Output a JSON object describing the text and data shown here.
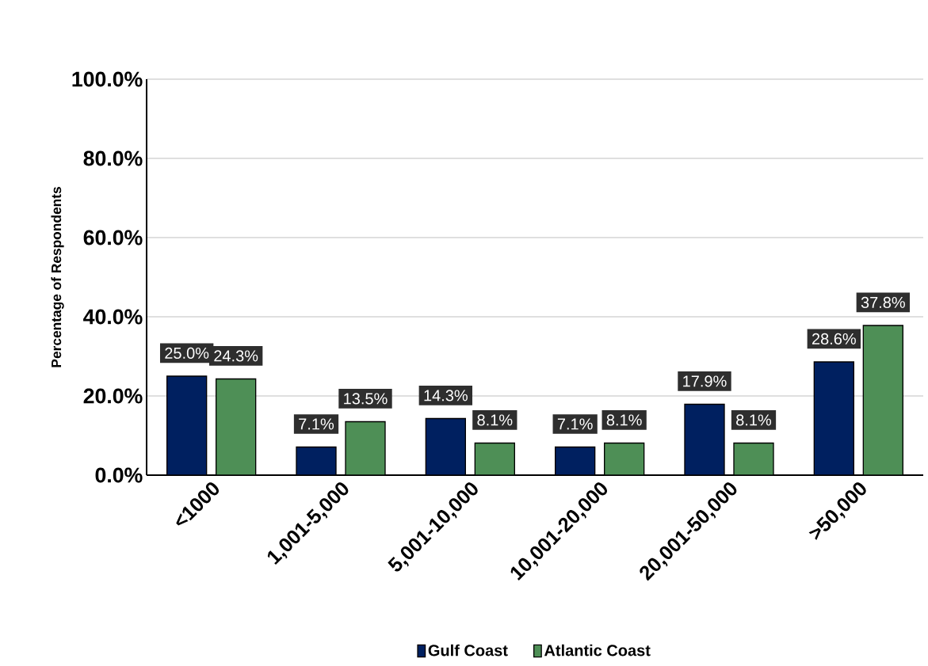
{
  "chart_data": {
    "type": "bar",
    "ylabel": "Percentage of Respondents",
    "categories": [
      "<1000",
      "1,001-5,000",
      "5,001-10,000",
      "10,001-20,000",
      "20,001-50,000",
      ">50,000"
    ],
    "series": [
      {
        "name": "Gulf Coast",
        "color": "#002060",
        "values": [
          25.0,
          7.1,
          14.3,
          7.1,
          17.9,
          28.6
        ],
        "value_labels": [
          "25.0%",
          "7.1%",
          "14.3%",
          "7.1%",
          "17.9%",
          "28.6%"
        ]
      },
      {
        "name": "Atlantic Coast",
        "color": "#4e8f56",
        "values": [
          24.3,
          13.5,
          8.1,
          8.1,
          8.1,
          37.8
        ],
        "value_labels": [
          "24.3%",
          "13.5%",
          "8.1%",
          "8.1%",
          "8.1%",
          "37.8%"
        ]
      }
    ],
    "ylim": [
      0,
      100
    ],
    "yticks": [
      {
        "value": 0,
        "label": "0.0%"
      },
      {
        "value": 20,
        "label": "20.0%"
      },
      {
        "value": 40,
        "label": "40.0%"
      },
      {
        "value": 60,
        "label": "60.0%"
      },
      {
        "value": 80,
        "label": "80.0%"
      },
      {
        "value": 100,
        "label": "100.0%"
      }
    ],
    "grid": "y",
    "legend": "bottom"
  }
}
